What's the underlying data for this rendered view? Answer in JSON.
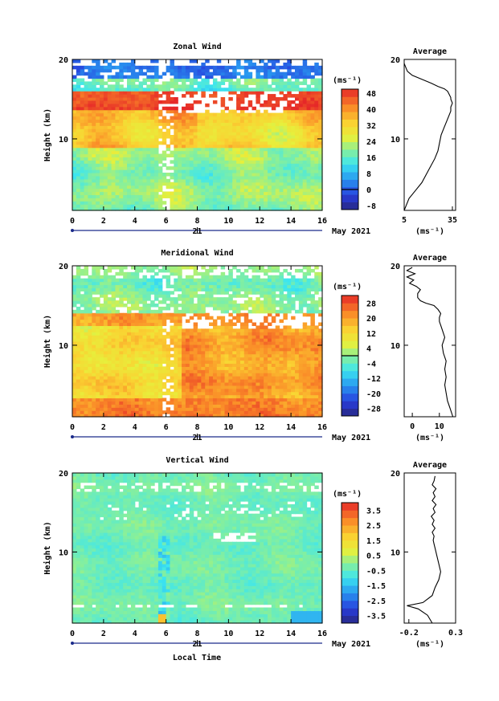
{
  "xlabel": "Local Time",
  "date_label": "May 2021",
  "day_label": "21",
  "chart_data": [
    {
      "type": "heatmap",
      "title": "Zonal Wind",
      "ylabel": "Height (km)",
      "xlim": [
        0,
        16
      ],
      "ylim": [
        1,
        20
      ],
      "xticks": [
        0,
        2,
        4,
        6,
        8,
        10,
        12,
        14,
        16
      ],
      "yticks": [
        10,
        20
      ],
      "colorbar": {
        "unit": "(ms⁻¹)",
        "range": [
          -10,
          50
        ],
        "ticks": [
          48,
          40,
          32,
          24,
          16,
          8,
          0,
          -8
        ],
        "zero_line": 0
      },
      "pattern": "zonal"
    },
    {
      "type": "heatmap",
      "title": "Meridional Wind",
      "ylabel": "Height (km)",
      "xlim": [
        0,
        16
      ],
      "ylim": [
        1,
        20
      ],
      "xticks": [
        0,
        2,
        4,
        6,
        8,
        10,
        12,
        14,
        16
      ],
      "yticks": [
        10,
        20
      ],
      "colorbar": {
        "unit": "(ms⁻¹)",
        "range": [
          -32,
          32
        ],
        "ticks": [
          28,
          20,
          12,
          4,
          -4,
          -12,
          -20,
          -28
        ],
        "zero_line": 0
      },
      "pattern": "meridional"
    },
    {
      "type": "heatmap",
      "title": "Vertical Wind",
      "ylabel": "Height (km)",
      "xlim": [
        0,
        16
      ],
      "ylim": [
        1,
        20
      ],
      "xticks": [
        0,
        2,
        4,
        6,
        8,
        10,
        12,
        14,
        16
      ],
      "yticks": [
        10,
        20
      ],
      "colorbar": {
        "unit": "(ms⁻¹)",
        "range": [
          -4,
          4
        ],
        "ticks": [
          3.5,
          2.5,
          1.5,
          0.5,
          -0.5,
          -1.5,
          -2.5,
          -3.5
        ],
        "zero_line": null
      },
      "pattern": "vertical"
    },
    {
      "type": "line",
      "title": "Average",
      "xlabel": "(ms⁻¹)",
      "xlim": [
        5,
        37
      ],
      "ylim": [
        1,
        20
      ],
      "xticks": [
        5,
        35
      ],
      "yticks": [
        10,
        20
      ],
      "x": [
        5,
        6,
        8,
        12,
        16,
        20,
        24,
        26,
        27,
        28,
        30,
        31,
        33,
        34,
        34,
        35,
        34,
        34,
        33,
        32,
        30,
        26,
        22,
        16,
        10,
        7,
        6,
        5
      ],
      "y": [
        1,
        1.5,
        2.5,
        3.5,
        4.5,
        6,
        7.5,
        8.5,
        9.5,
        10.5,
        11.5,
        12,
        13,
        13.5,
        14,
        14.5,
        15,
        15.2,
        15.6,
        16,
        16.3,
        16.6,
        17,
        17.5,
        18,
        18.5,
        19,
        19.5
      ]
    },
    {
      "type": "line",
      "title": "Average",
      "xlabel": "(ms⁻¹)",
      "xlim": [
        -3,
        16
      ],
      "ylim": [
        1,
        20
      ],
      "xticks": [
        0,
        10
      ],
      "yticks": [
        10,
        20
      ],
      "x": [
        15,
        14,
        13,
        12.5,
        12,
        12.5,
        12,
        12.5,
        11.5,
        11,
        12,
        11,
        10.5,
        10,
        10,
        10.5,
        9.5,
        8,
        5,
        3,
        2,
        2,
        3,
        1.5,
        -1,
        0.5,
        -2,
        1,
        -2,
        0
      ],
      "y": [
        1,
        2,
        3,
        4,
        5,
        6,
        7,
        8,
        9,
        10,
        11,
        12,
        12.5,
        13,
        13.5,
        14,
        14.5,
        15,
        15.3,
        15.6,
        16,
        16.5,
        17,
        17.4,
        17.8,
        18.2,
        18.6,
        19,
        19.4,
        19.8
      ]
    },
    {
      "type": "line",
      "title": "Average",
      "xlabel": "(ms⁻¹)",
      "xlim": [
        -0.25,
        0.3
      ],
      "ylim": [
        1,
        20
      ],
      "xticks": [
        -0.2,
        0.3
      ],
      "yticks": [
        10,
        20
      ],
      "x": [
        0.05,
        0.0,
        -0.1,
        -0.22,
        -0.05,
        0.05,
        0.08,
        0.12,
        0.14,
        0.12,
        0.1,
        0.08,
        0.07,
        0.06,
        0.07,
        0.05,
        0.08,
        0.05,
        0.07,
        0.04,
        0.08,
        0.06,
        0.09,
        0.05,
        0.08,
        0.06,
        0.09,
        0.05,
        0.07,
        0.08
      ],
      "y": [
        1,
        2,
        2.8,
        3.2,
        3.6,
        4.5,
        5.5,
        6.5,
        7.5,
        8.5,
        9.5,
        10.5,
        11,
        11.5,
        12,
        12.5,
        13,
        13.5,
        14,
        14.5,
        15,
        15.5,
        16,
        16.5,
        17,
        17.5,
        18,
        18.5,
        19,
        19.6
      ]
    }
  ]
}
